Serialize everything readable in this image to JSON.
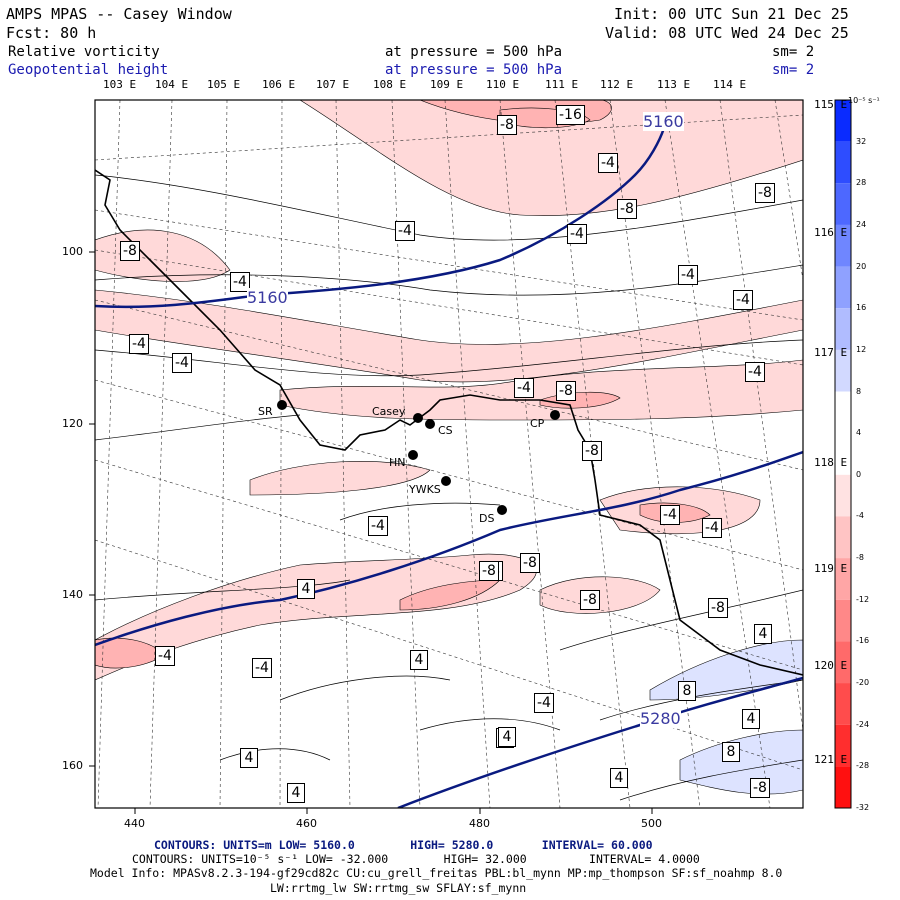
{
  "header": {
    "title": "AMPS MPAS -- Casey Window",
    "forecast": "Fcst:   80 h",
    "init": "Init: 00 UTC Sun 21 Dec 25",
    "valid": "Valid: 08 UTC Wed 24 Dec 25",
    "field1_name": "Relative vorticity",
    "field1_level": "at pressure =  500 hPa",
    "field1_sm": "sm= 2",
    "field2_name": "Geopotential height",
    "field2_level": "at pressure =  500 hPa",
    "field2_sm": "sm= 2"
  },
  "map": {
    "lon_labels_top": [
      "103 E",
      "104 E",
      "105 E",
      "106 E",
      "107 E",
      "108 E",
      "109 E",
      "110 E",
      "111 E",
      "112 E",
      "113 E",
      "114 E"
    ],
    "lon_labels_right": [
      "115 E",
      "116 E",
      "117 E",
      "118 E",
      "119 E",
      "120 E",
      "121 E"
    ],
    "x_ticks": [
      "440",
      "460",
      "480",
      "500"
    ],
    "y_ticks": [
      "100",
      "120",
      "140",
      "160"
    ],
    "stations": [
      {
        "id": "SR",
        "label": "SR"
      },
      {
        "id": "Casey",
        "label": "Casey"
      },
      {
        "id": "CS",
        "label": "CS"
      },
      {
        "id": "CP",
        "label": "CP"
      },
      {
        "id": "HN",
        "label": "HN"
      },
      {
        "id": "YWKS",
        "label": "YWKS"
      },
      {
        "id": "DS",
        "label": "DS"
      }
    ],
    "height_labels": [
      "5160",
      "5160",
      "5280"
    ],
    "vort_labels": [
      "-8",
      "-16",
      "-4",
      "-8",
      "-8",
      "-4",
      "-4",
      "-8",
      "-4",
      "-4",
      "-4",
      "-4",
      "-4",
      "-4",
      "-8",
      "-4",
      "-8",
      "-4",
      "4",
      "-4",
      "-8",
      "-4",
      "-8",
      "-4",
      "-8",
      "-4",
      "-4",
      "-8",
      "-4",
      "4",
      "8",
      "4",
      "4",
      "4",
      "4",
      "8",
      "-8",
      "4",
      "4",
      "4"
    ]
  },
  "colorbar": {
    "units": "10⁻⁵ s⁻¹",
    "labels": [
      "32",
      "28",
      "24",
      "20",
      "16",
      "12",
      "8",
      "4",
      "0",
      "-4",
      "-8",
      "-12",
      "-16",
      "-20",
      "-24",
      "-28",
      "-32"
    ],
    "colors": [
      "#0a2bff",
      "#2e4dff",
      "#4d68ff",
      "#6f86ff",
      "#8fa1ff",
      "#b0bcff",
      "#d2d9ff",
      "#ffffff",
      "#ffffff",
      "#ffe2e2",
      "#ffc4c4",
      "#ffa6a6",
      "#ff8888",
      "#ff6a6a",
      "#ff4c4c",
      "#ff2e2e",
      "#ff1010"
    ]
  },
  "footer": {
    "line1_label": "CONTOURS:",
    "line1_units": "UNITS=m",
    "line1_low": "LOW=  5160.0",
    "line1_high": "HIGH=  5280.0",
    "line1_interval": "INTERVAL=   60.000",
    "line2_label": "CONTOURS:",
    "line2_units": "UNITS=10⁻⁵ s⁻¹",
    "line2_low": "LOW= -32.000",
    "line2_high": "HIGH= 32.000",
    "line2_interval": "INTERVAL=  4.0000",
    "model_info": "Model Info: MPASv8.2.3-194-gf29cd82c CU:cu_grell_freitas PBL:bl_mynn MP:mp_thompson SF:sf_noahmp 8.0",
    "model_info2": "LW:rrtmg_lw SW:rrtmg_sw SFLAY:sf_mynn"
  }
}
